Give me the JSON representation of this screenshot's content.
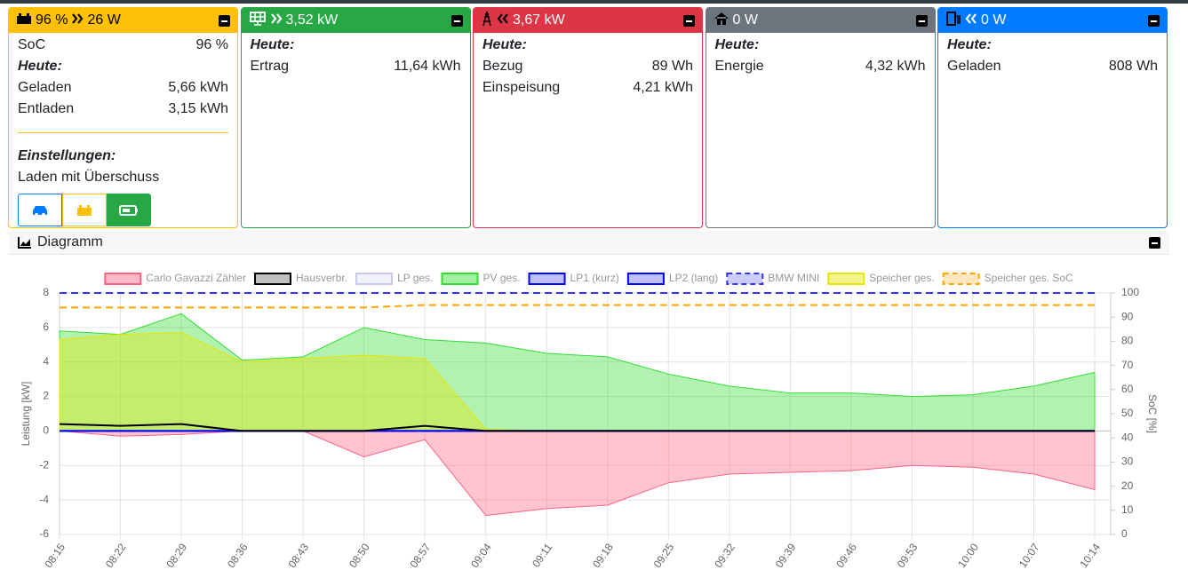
{
  "cards": [
    {
      "header": [
        "96 %",
        "26 W"
      ],
      "rows": [
        {
          "label": "SoC",
          "value": "96 %"
        },
        {
          "heading": "Heute:"
        },
        {
          "label": "Geladen",
          "value": "5,66 kWh"
        },
        {
          "label": "Entladen",
          "value": "3,15 kWh"
        }
      ],
      "settings_heading": "Einstellungen:",
      "mode": "Laden mit Überschuss"
    },
    {
      "header": [
        "3,52 kW"
      ],
      "rows": [
        {
          "heading": "Heute:"
        },
        {
          "label": "Ertrag",
          "value": "11,64 kWh"
        }
      ]
    },
    {
      "header": [
        "3,67 kW"
      ],
      "rows": [
        {
          "heading": "Heute:"
        },
        {
          "label": "Bezug",
          "value": "89 Wh"
        },
        {
          "label": "Einspeisung",
          "value": "4,21 kWh"
        }
      ]
    },
    {
      "header": [
        "0 W"
      ],
      "rows": [
        {
          "heading": "Heute:"
        },
        {
          "label": "Energie",
          "value": "4,32 kWh"
        }
      ]
    },
    {
      "header": [
        "0 W"
      ],
      "rows": [
        {
          "heading": "Heute:"
        },
        {
          "label": "Geladen",
          "value": "808 Wh"
        }
      ]
    }
  ],
  "diagram_title": "Diagramm",
  "chart_data": {
    "type": "line",
    "categories": [
      "08:15",
      "08:22",
      "08:29",
      "08:36",
      "08:43",
      "08:50",
      "08:57",
      "09:04",
      "09:11",
      "09:18",
      "09:25",
      "09:32",
      "09:39",
      "09:46",
      "09:53",
      "10:00",
      "10:07",
      "10:14"
    ],
    "y_label": "Leistung [kW]",
    "y2_label": "SoC [%]",
    "ylim": [
      -6,
      8
    ],
    "yticks": [
      -6,
      -4,
      -2,
      0,
      2,
      4,
      6,
      8
    ],
    "y2lim": [
      0,
      100
    ],
    "y2ticks": [
      0,
      10,
      20,
      30,
      40,
      50,
      60,
      70,
      80,
      90,
      100
    ],
    "grid": true,
    "series": [
      {
        "name": "Carlo Gavazzi Zähler",
        "color": "#ff6384",
        "fill": true,
        "values": [
          0,
          -0.3,
          -0.2,
          0,
          0,
          -1.5,
          -0.5,
          -4.9,
          -4.5,
          -4.3,
          -3.0,
          -2.5,
          -2.4,
          -2.3,
          -2.0,
          -2.1,
          -2.5,
          -3.4
        ]
      },
      {
        "name": "Hausverbr.",
        "color": "#000000",
        "fill": false,
        "values": [
          0.4,
          0.3,
          0.4,
          0,
          0,
          0,
          0.3,
          0,
          0,
          0,
          0,
          0,
          0,
          0,
          0,
          0,
          0,
          0
        ]
      },
      {
        "name": "LP ges.",
        "color": "#c8c8f0",
        "fill": false,
        "values": [
          0,
          0,
          0,
          0,
          0,
          0,
          0,
          0,
          0,
          0,
          0,
          0,
          0,
          0,
          0,
          0,
          0,
          0
        ]
      },
      {
        "name": "PV ges.",
        "color": "#33dd33",
        "fill": true,
        "values": [
          5.8,
          5.6,
          6.8,
          4.1,
          4.3,
          6.0,
          5.3,
          5.1,
          4.5,
          4.3,
          3.3,
          2.6,
          2.2,
          2.2,
          2.0,
          2.1,
          2.6,
          3.4
        ]
      },
      {
        "name": "LP1 (kurz)",
        "color": "#0000ff",
        "fill": false,
        "values": [
          0,
          0,
          0,
          0,
          0,
          0,
          0,
          0,
          0,
          0,
          0,
          0,
          0,
          0,
          0,
          0,
          0,
          0
        ]
      },
      {
        "name": "LP2 (lang)",
        "color": "#0000ff",
        "fill": false,
        "values": [
          0,
          0,
          0,
          0,
          0,
          0,
          0,
          0,
          0,
          0,
          0,
          0,
          0,
          0,
          0,
          0,
          0,
          0
        ]
      },
      {
        "name": "BMW MINI",
        "color": "#3333ff",
        "fill": false,
        "dash": true,
        "axis": "y2",
        "values": [
          100,
          100,
          100,
          100,
          100,
          100,
          100,
          100,
          100,
          100,
          100,
          100,
          100,
          100,
          100,
          100,
          100,
          100
        ]
      },
      {
        "name": "Speicher ges.",
        "color": "#e6e600",
        "fill": true,
        "values": [
          5.3,
          5.6,
          5.7,
          4.0,
          4.2,
          4.4,
          4.2,
          0.1,
          0,
          0,
          0,
          0,
          0,
          0,
          0,
          0,
          0,
          0
        ]
      },
      {
        "name": "Speicher ges. SoC",
        "color": "#ffa500",
        "fill": false,
        "dash": true,
        "axis": "y2",
        "values": [
          94,
          94,
          94,
          94,
          94,
          94,
          95,
          95,
          95,
          95,
          95,
          95,
          95,
          95,
          95,
          95,
          95,
          95
        ]
      }
    ]
  }
}
